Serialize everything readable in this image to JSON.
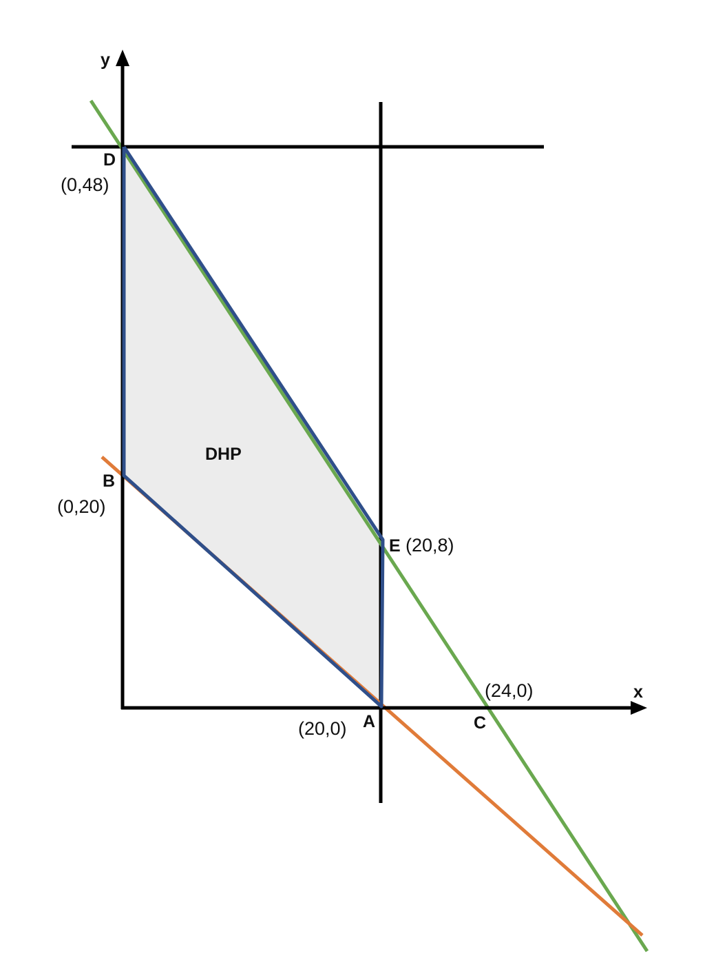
{
  "axes": {
    "x_label": "x",
    "y_label": "y"
  },
  "region_label": "DHP",
  "points": {
    "D": {
      "name": "D",
      "coords": "(0,48)"
    },
    "B": {
      "name": "B",
      "coords": "(0,20)"
    },
    "E": {
      "name": "E",
      "coords": "(20,8)"
    },
    "A": {
      "name": "A",
      "coords": "(20,0)"
    },
    "C": {
      "name": "C",
      "coords": "(24,0)"
    }
  },
  "colors": {
    "region_fill": "#ececec",
    "region_border": "#2f4f8a",
    "green_line": "#6aa84f",
    "orange_line": "#e07b39",
    "axes": "#000000"
  }
}
